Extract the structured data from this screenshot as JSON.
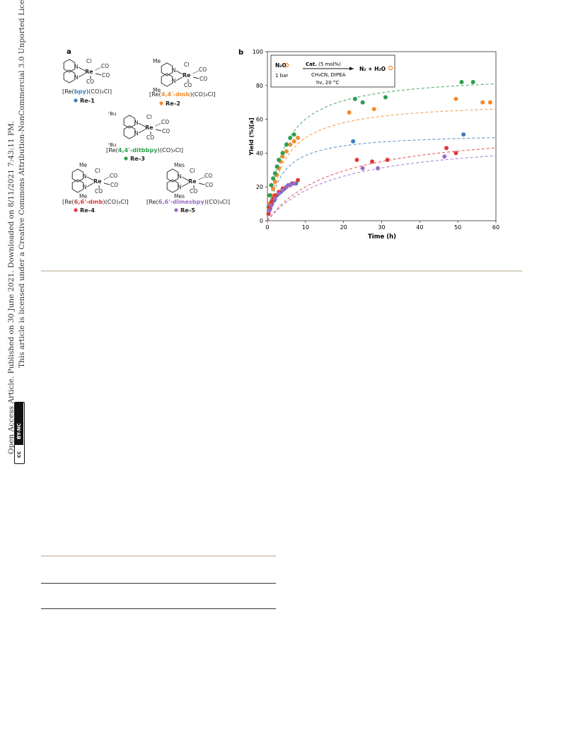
{
  "side_note": {
    "line1": "Open Access Article. Published on 30 June 2021. Downloaded on 8/11/2021 7:43:11 PM.",
    "line2": "This article is licensed under a Creative Commons Attribution-NonCommercial 3.0 Unported Licence.",
    "badge_cc": "cc",
    "badge_bync": "BY-NC"
  },
  "panel_a": {
    "label": "a",
    "atoms": {
      "cl": "Cl",
      "re": "Re",
      "co": "CO",
      "n": "N",
      "me": "Me",
      "tbu": "ᵗBu",
      "mes": "Mes"
    },
    "complexes": [
      {
        "prefix": "[Re(",
        "ligand": "bpy",
        "suffix": ")(CO)₃Cl]",
        "code": "Re-1",
        "color": "#3a7fc1"
      },
      {
        "prefix": "[Re(",
        "ligand": "4,4'-dmb",
        "suffix": ")(CO)₃Cl]",
        "code": "Re-2",
        "color": "#f28b30"
      },
      {
        "prefix": "[Re(",
        "ligand": "4,4'-ditbbpy",
        "suffix": ")(CO)₃Cl]",
        "code": "Re-3",
        "color": "#2e9e4f"
      },
      {
        "prefix": "[Re(",
        "ligand": "6,6'-dmb",
        "suffix": ")(CO)₃Cl]",
        "code": "Re-4",
        "color": "#e03a3a"
      },
      {
        "prefix": "[Re(",
        "ligand": "6,6'-dimesbpy",
        "suffix": ")(CO)₃Cl]",
        "code": "Re-5",
        "color": "#9a6bc7"
      }
    ]
  },
  "panel_b": {
    "label": "b",
    "reaction": {
      "reactant": "N₂O",
      "pressure": "1 bar",
      "catalyst": "Cat.",
      "loading": " (5 mol%)",
      "conditions1": "CH₃CN, DIPEA",
      "conditions2": "hν, 20 °C",
      "products": "N₂ + H₂O"
    }
  },
  "chart_data": {
    "type": "scatter",
    "xlabel": "Time (h)",
    "ylabel": "Yield (%)[a]",
    "xlim": [
      0,
      60
    ],
    "ylim": [
      0,
      100
    ],
    "xticks": [
      "0",
      "10",
      "20",
      "30",
      "40",
      "50",
      "60"
    ],
    "yticks": [
      "0",
      "20",
      "40",
      "60",
      "80",
      "100"
    ],
    "fit_lines": "dashed",
    "series": [
      {
        "name": "Re-1",
        "color": "#3a7fc1",
        "fit": [
          52,
          3.5
        ],
        "x": [
          0.3,
          0.7,
          1.2,
          1.8,
          2.5,
          3.5,
          4.5,
          5.5,
          6.5,
          7.5,
          22.5,
          51.5
        ],
        "y": [
          4,
          7,
          10,
          12,
          15,
          17,
          19,
          21,
          22,
          22,
          47,
          51
        ]
      },
      {
        "name": "Re-2",
        "color": "#f28b30",
        "fit": [
          71,
          4.5
        ],
        "x": [
          0.3,
          0.6,
          1.0,
          1.5,
          2.0,
          2.5,
          3.0,
          3.5,
          4.0,
          5.0,
          6.0,
          7.0,
          8.0,
          21.5,
          28.0,
          49.5,
          56.5,
          58.5
        ],
        "y": [
          6,
          10,
          15,
          19,
          23,
          27,
          31,
          35,
          38,
          41,
          45,
          47,
          49,
          64,
          66,
          72,
          70,
          70
        ]
      },
      {
        "name": "Re-3",
        "color": "#2e9e4f",
        "fit": [
          87,
          4.5
        ],
        "x": [
          0.3,
          0.6,
          1.0,
          1.5,
          2.0,
          2.5,
          3.0,
          4.0,
          5.0,
          6.0,
          7.0,
          23.0,
          25.0,
          31.0,
          51.0,
          54.0
        ],
        "y": [
          8,
          15,
          21,
          25,
          28,
          32,
          36,
          40,
          45,
          49,
          51,
          72,
          70,
          73,
          82,
          82
        ]
      },
      {
        "name": "Re-4",
        "color": "#e03a3a",
        "fit": [
          56,
          18
        ],
        "x": [
          0.3,
          0.6,
          1.0,
          1.5,
          2.0,
          3.0,
          4.0,
          5.0,
          6.5,
          8.0,
          23.5,
          27.5,
          31.5,
          47.0,
          49.5
        ],
        "y": [
          4,
          8,
          11,
          13,
          15,
          17,
          19,
          20,
          22,
          24,
          36,
          35,
          36,
          43,
          40
        ]
      },
      {
        "name": "Re-5",
        "color": "#9a6bc7",
        "fit": [
          50,
          18
        ],
        "x": [
          0.5,
          1.0,
          2.0,
          3.0,
          4.0,
          5.0,
          6.0,
          7.0,
          25.0,
          29.0,
          46.5
        ],
        "y": [
          6,
          9,
          13,
          16,
          18,
          20,
          21,
          22,
          31,
          31,
          38
        ]
      }
    ]
  }
}
